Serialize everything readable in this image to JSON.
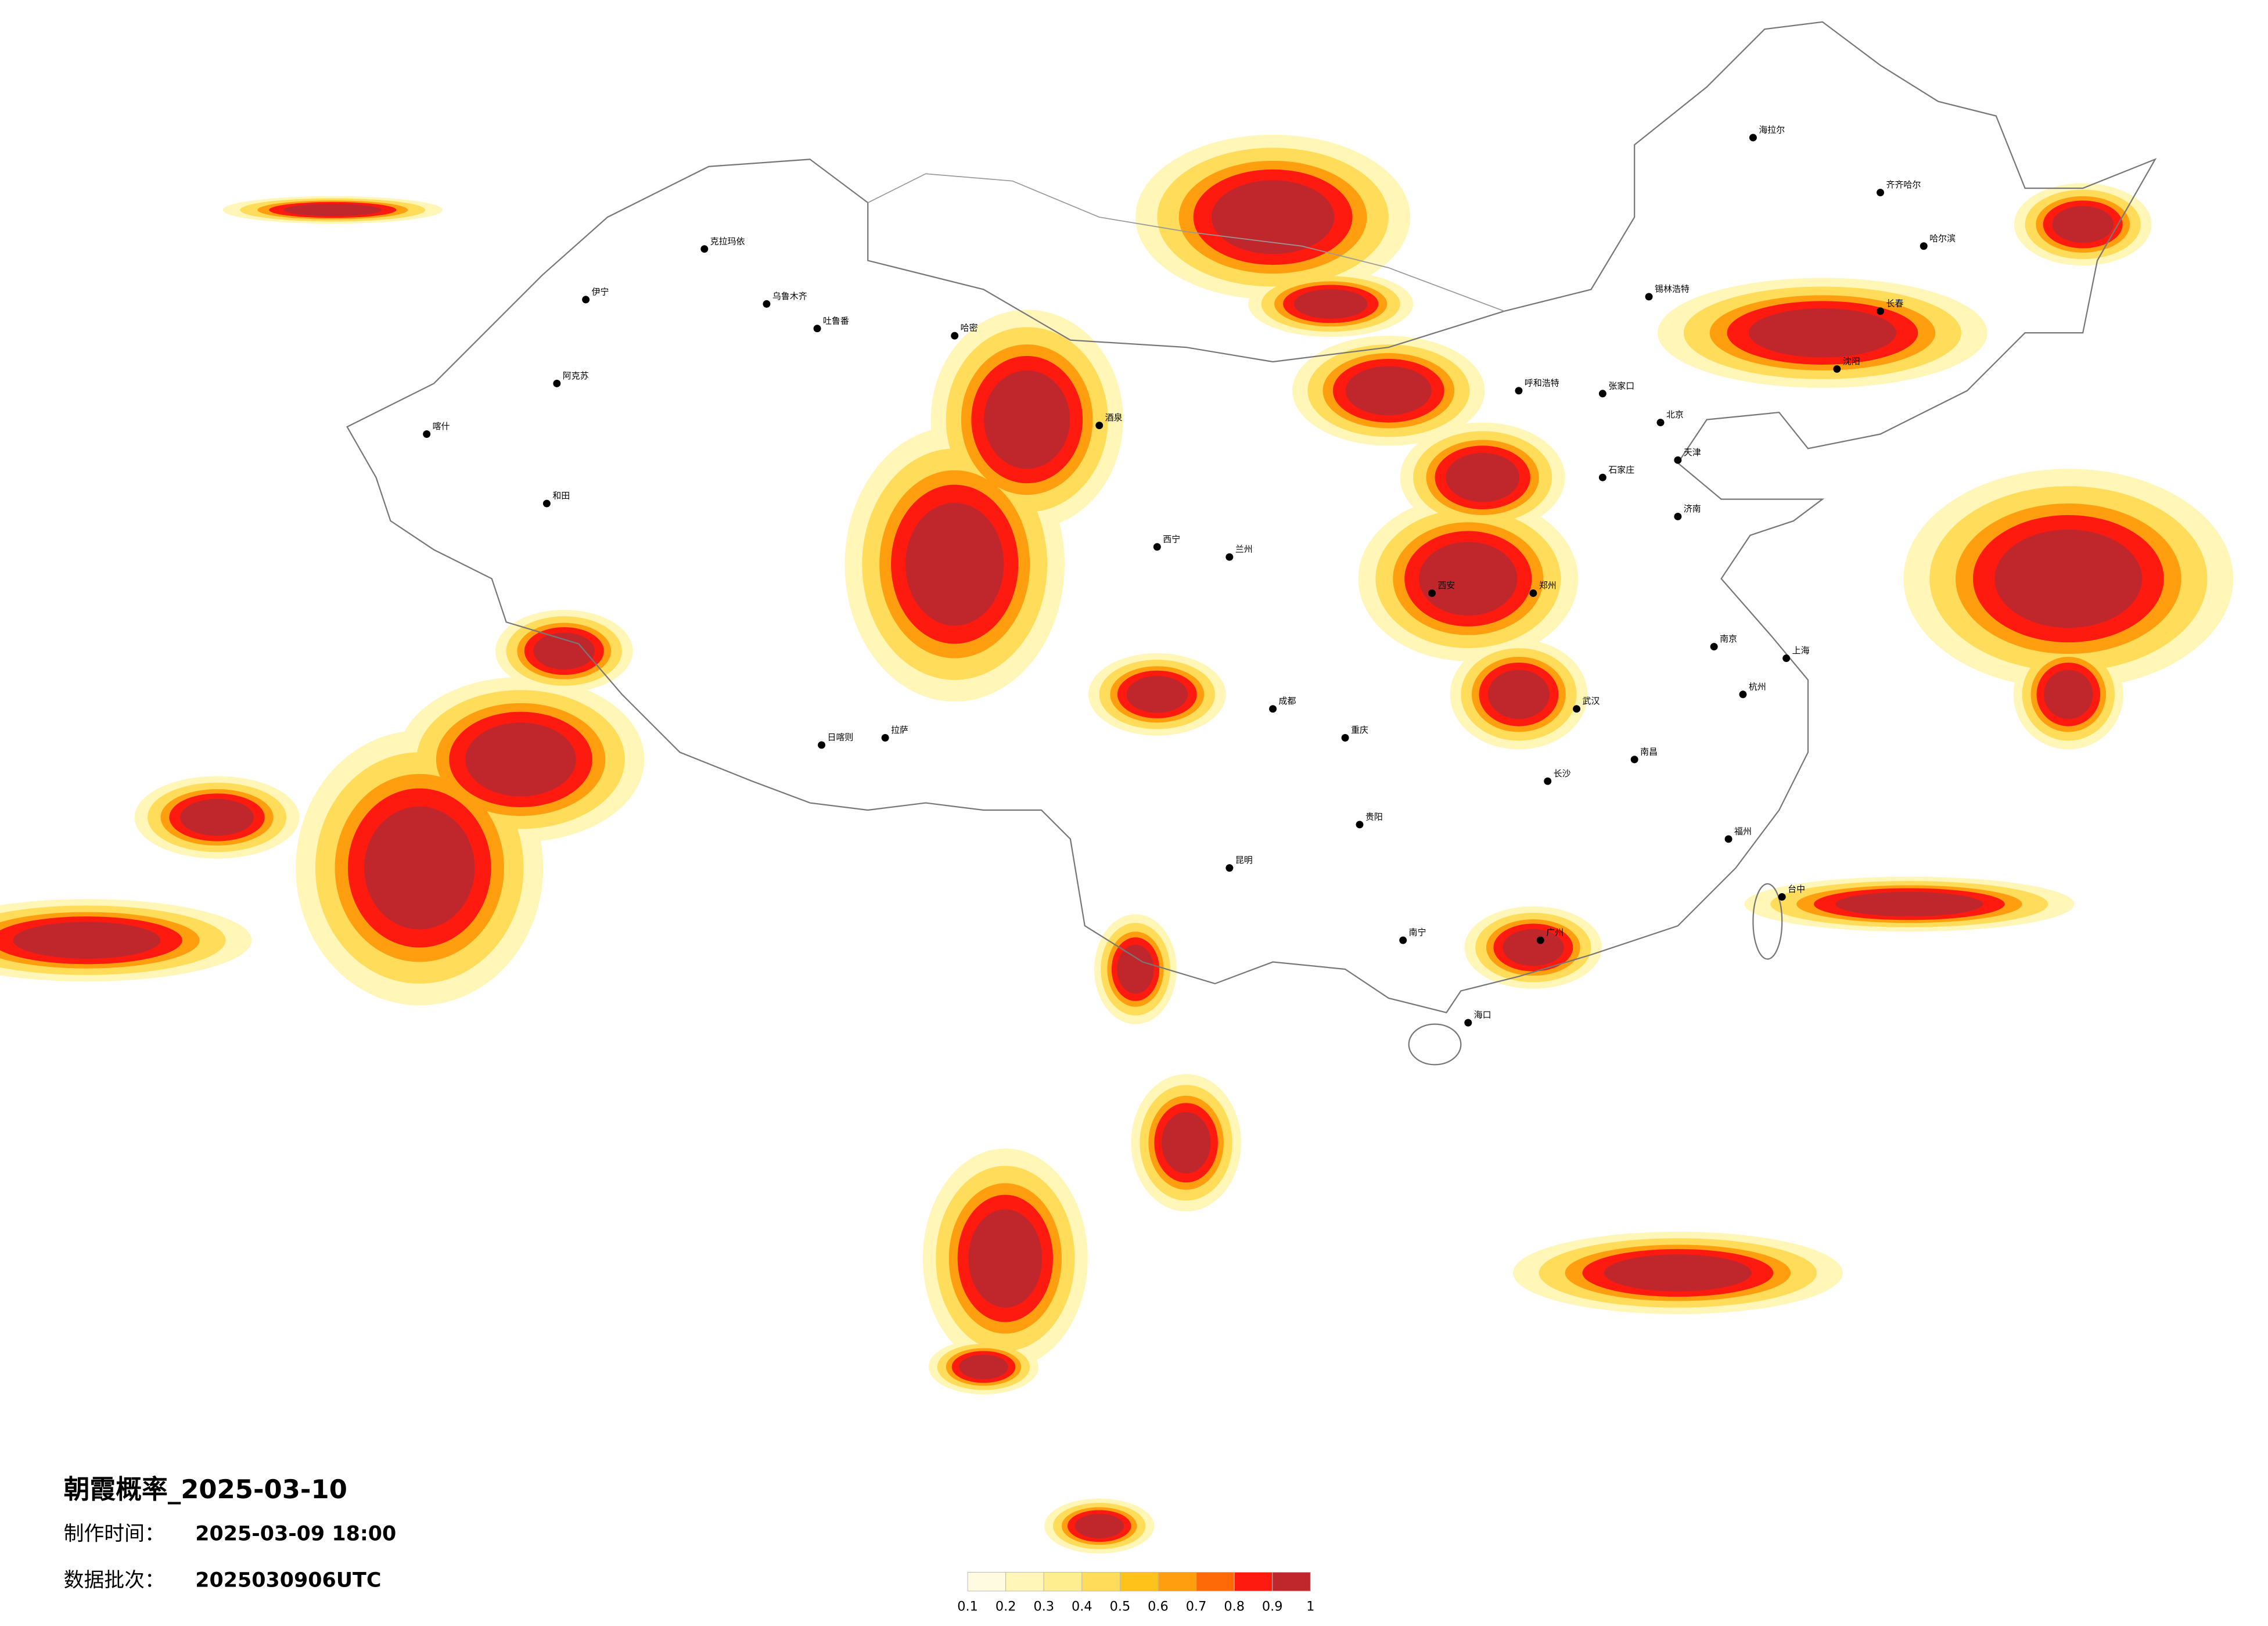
{
  "title": "朝霞概率_2025-03-10",
  "made_label": "制作时间：",
  "made_time": "2025-03-09 18:00",
  "batch_label": "数据批次：",
  "batch": "2025030906UTC",
  "legend": {
    "ticks": [
      0.1,
      0.2,
      0.3,
      0.4,
      0.5,
      0.6,
      0.7,
      0.8,
      0.9,
      1
    ],
    "colors": [
      "#fffbe0",
      "#fff6b8",
      "#ffee90",
      "#ffdc5a",
      "#ffc21a",
      "#ff9f10",
      "#ff6a08",
      "#ff1a10",
      "#c0272d"
    ]
  },
  "cities": [
    "克拉玛依",
    "伊宁",
    "乌鲁木齐",
    "阿克苏",
    "和田",
    "喀什",
    "吐鲁番",
    "哈密",
    "日喀则",
    "拉萨",
    "酒泉",
    "西宁",
    "兰州",
    "呼和浩特",
    "北京",
    "天津",
    "石家庄",
    "济南",
    "郑州",
    "西安",
    "武汉",
    "长沙",
    "南昌",
    "南京",
    "上海",
    "杭州",
    "福州",
    "广州",
    "南宁",
    "昆明",
    "贵阳",
    "成都",
    "重庆",
    "哈尔滨",
    "长春",
    "沈阳",
    "海拉尔",
    "锡林浩特",
    "海口",
    "台中",
    "张家口",
    "齐齐哈尔"
  ]
}
